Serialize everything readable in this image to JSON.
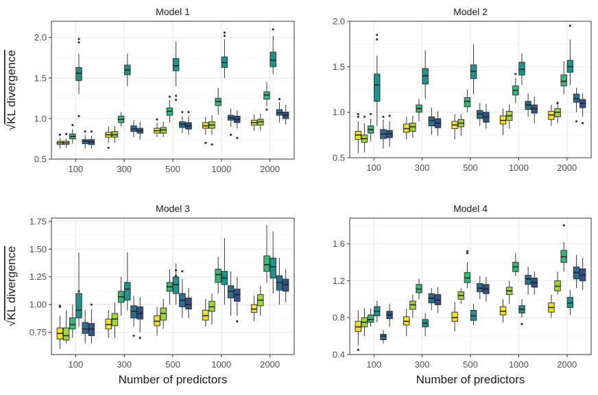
{
  "colors": {
    "m1": "#f4e21e",
    "m2": "#9fd835",
    "m3": "#38b776",
    "m4": "#21918c",
    "m5": "#2d6d8e",
    "m6": "#32508c",
    "grid_major": "#e6e6e6",
    "grid_minor": "#f2f2f2",
    "panel_border": "#333333"
  },
  "chart_data": [
    {
      "type": "box",
      "title": "Model 1",
      "xlabel": "",
      "ylabel": "KL divergence",
      "ylabel_prefix": "√",
      "categories": [
        "100",
        "300",
        "500",
        "1000",
        "2000"
      ],
      "ylim": [
        0.5,
        2.2
      ],
      "yticks": [
        0.5,
        1.0,
        1.5,
        2.0
      ],
      "ytick_labels": [
        "0.5",
        "1.0",
        "1.5",
        "2.0"
      ],
      "boxes": [
        [
          [
            0.63,
            0.68,
            0.7,
            0.72,
            0.76,
            [
              0.8
            ]
          ],
          [
            0.64,
            0.68,
            0.7,
            0.72,
            0.75,
            [
              0.81
            ]
          ],
          [
            0.69,
            0.75,
            0.78,
            0.81,
            0.87,
            [
              0.92
            ]
          ],
          [
            1.3,
            1.47,
            1.56,
            1.63,
            1.8,
            [
              1.03,
              1.94,
              1.98
            ]
          ],
          [
            0.63,
            0.69,
            0.72,
            0.74,
            0.8,
            [
              0.84
            ]
          ],
          [
            0.63,
            0.68,
            0.71,
            0.74,
            0.79,
            [
              0.84
            ]
          ]
        ],
        [
          [
            0.7,
            0.77,
            0.8,
            0.83,
            0.9,
            [
              0.64
            ]
          ],
          [
            0.7,
            0.77,
            0.8,
            0.84,
            0.91,
            []
          ],
          [
            0.9,
            0.95,
            0.99,
            1.03,
            1.08,
            []
          ],
          [
            1.4,
            1.54,
            1.6,
            1.66,
            1.8,
            []
          ],
          [
            0.77,
            0.84,
            0.87,
            0.91,
            0.98,
            []
          ],
          [
            0.74,
            0.82,
            0.85,
            0.88,
            0.96,
            []
          ]
        ],
        [
          [
            0.77,
            0.82,
            0.85,
            0.88,
            0.95,
            [
              0.99
            ]
          ],
          [
            0.77,
            0.82,
            0.86,
            0.89,
            0.96,
            []
          ],
          [
            0.95,
            1.04,
            1.09,
            1.13,
            1.23,
            [
              1.27
            ]
          ],
          [
            1.4,
            1.59,
            1.65,
            1.74,
            1.95,
            [
              1.23,
              1.28
            ]
          ],
          [
            0.82,
            0.89,
            0.93,
            0.96,
            1.03,
            [
              1.08
            ]
          ],
          [
            0.8,
            0.87,
            0.91,
            0.95,
            1.03,
            [
              1.08
            ]
          ]
        ],
        [
          [
            0.8,
            0.88,
            0.91,
            0.95,
            1.02,
            [
              0.7
            ]
          ],
          [
            0.8,
            0.88,
            0.92,
            0.96,
            1.04,
            [
              0.68
            ]
          ],
          [
            1.05,
            1.16,
            1.21,
            1.25,
            1.38,
            []
          ],
          [
            1.5,
            1.63,
            1.69,
            1.76,
            1.98,
            [
              2.02,
              2.06
            ]
          ],
          [
            0.9,
            0.98,
            1.01,
            1.04,
            1.12,
            [
              0.8
            ]
          ],
          [
            0.88,
            0.95,
            0.99,
            1.03,
            1.1,
            [
              0.76
            ]
          ]
        ],
        [
          [
            0.85,
            0.92,
            0.95,
            0.98,
            1.05,
            []
          ],
          [
            0.85,
            0.92,
            0.96,
            0.99,
            1.06,
            []
          ],
          [
            1.15,
            1.24,
            1.29,
            1.33,
            1.45,
            [
              1.11
            ]
          ],
          [
            1.55,
            1.64,
            1.72,
            1.82,
            2.02,
            [
              2.1
            ]
          ],
          [
            0.95,
            1.04,
            1.07,
            1.11,
            1.2,
            [
              1.24
            ]
          ],
          [
            0.93,
            1.0,
            1.04,
            1.08,
            1.17,
            []
          ]
        ]
      ]
    },
    {
      "type": "box",
      "title": "Model 2",
      "xlabel": "",
      "ylabel": "",
      "ylabel_prefix": "",
      "categories": [
        "100",
        "300",
        "500",
        "1000",
        "2000"
      ],
      "ylim": [
        0.5,
        2.0
      ],
      "yticks": [
        0.5,
        1.0,
        1.5,
        2.0
      ],
      "ytick_labels": [
        "0.5",
        "1.0",
        "1.5",
        "2.0"
      ],
      "boxes": [
        [
          [
            0.55,
            0.7,
            0.75,
            0.79,
            0.9,
            [
              0.95,
              0.98
            ]
          ],
          [
            0.56,
            0.67,
            0.71,
            0.75,
            0.88,
            [
              0.95
            ]
          ],
          [
            0.68,
            0.77,
            0.81,
            0.85,
            0.93,
            [
              0.98
            ]
          ],
          [
            0.85,
            1.12,
            1.3,
            1.42,
            1.62,
            [
              1.8,
              1.85
            ]
          ],
          [
            0.6,
            0.71,
            0.76,
            0.81,
            0.92,
            [
              0.95
            ]
          ],
          [
            0.62,
            0.72,
            0.76,
            0.8,
            0.9,
            [
              0.96
            ]
          ]
        ],
        [
          [
            0.7,
            0.78,
            0.82,
            0.87,
            0.95,
            []
          ],
          [
            0.72,
            0.79,
            0.84,
            0.88,
            0.96,
            []
          ],
          [
            0.9,
            1.0,
            1.04,
            1.08,
            1.15,
            []
          ],
          [
            1.15,
            1.31,
            1.4,
            1.48,
            1.68,
            []
          ],
          [
            0.75,
            0.85,
            0.91,
            0.95,
            1.05,
            []
          ],
          [
            0.74,
            0.83,
            0.88,
            0.93,
            1.01,
            []
          ]
        ],
        [
          [
            0.7,
            0.82,
            0.86,
            0.9,
            0.98,
            []
          ],
          [
            0.74,
            0.84,
            0.88,
            0.92,
            0.98,
            []
          ],
          [
            1.0,
            1.06,
            1.12,
            1.16,
            1.25,
            []
          ],
          [
            1.2,
            1.37,
            1.45,
            1.52,
            1.75,
            []
          ],
          [
            0.85,
            0.93,
            0.98,
            1.02,
            1.1,
            []
          ],
          [
            0.82,
            0.89,
            0.95,
            1.0,
            1.09,
            []
          ]
        ],
        [
          [
            0.75,
            0.87,
            0.91,
            0.96,
            1.04,
            []
          ],
          [
            0.82,
            0.91,
            0.96,
            1.01,
            1.09,
            []
          ],
          [
            1.1,
            1.19,
            1.24,
            1.29,
            1.38,
            [
              1.42
            ]
          ],
          [
            1.3,
            1.41,
            1.47,
            1.55,
            1.65,
            []
          ],
          [
            0.95,
            1.03,
            1.08,
            1.12,
            1.21,
            []
          ],
          [
            0.88,
            0.99,
            1.04,
            1.08,
            1.17,
            []
          ]
        ],
        [
          [
            0.85,
            0.92,
            0.97,
            1.01,
            1.08,
            []
          ],
          [
            0.88,
            0.95,
            1.0,
            1.04,
            1.12,
            [
              1.1
            ]
          ],
          [
            1.2,
            1.29,
            1.34,
            1.41,
            1.56,
            []
          ],
          [
            1.3,
            1.44,
            1.5,
            1.57,
            1.8,
            [
              1.95
            ]
          ],
          [
            1.0,
            1.11,
            1.15,
            1.2,
            1.27,
            [
              0.9
            ]
          ],
          [
            0.95,
            1.05,
            1.1,
            1.14,
            1.21,
            [
              0.88
            ]
          ]
        ]
      ]
    },
    {
      "type": "box",
      "title": "Model 3",
      "xlabel": "Number of predictors",
      "ylabel": "KL divergence",
      "ylabel_prefix": "√",
      "categories": [
        "100",
        "300",
        "500",
        "1000",
        "2000"
      ],
      "ylim": [
        0.55,
        1.78
      ],
      "yticks": [
        0.75,
        1.0,
        1.25,
        1.5,
        1.75
      ],
      "ytick_labels": [
        "0.75",
        "1.00",
        "1.25",
        "1.50",
        "1.75"
      ],
      "boxes": [
        [
          [
            0.6,
            0.69,
            0.74,
            0.79,
            0.9,
            [
              0.98,
              0.99
            ]
          ],
          [
            0.65,
            0.68,
            0.72,
            0.79,
            0.95,
            []
          ],
          [
            0.7,
            0.78,
            0.82,
            0.88,
            1.0,
            []
          ],
          [
            0.8,
            0.88,
            0.95,
            1.1,
            1.47,
            [
              1.12
            ]
          ],
          [
            0.65,
            0.74,
            0.78,
            0.84,
            0.95,
            []
          ],
          [
            0.65,
            0.72,
            0.78,
            0.83,
            0.96,
            [
              1.0
            ]
          ]
        ],
        [
          [
            0.7,
            0.78,
            0.82,
            0.87,
            0.95,
            []
          ],
          [
            0.7,
            0.81,
            0.87,
            0.92,
            1.02,
            []
          ],
          [
            0.9,
            1.02,
            1.07,
            1.12,
            1.25,
            []
          ],
          [
            0.95,
            1.04,
            1.14,
            1.2,
            1.47,
            []
          ],
          [
            0.8,
            0.88,
            0.94,
            0.99,
            1.08,
            [
              0.72
            ]
          ],
          [
            0.75,
            0.87,
            0.92,
            0.98,
            1.07,
            [
              0.7
            ]
          ]
        ],
        [
          [
            0.72,
            0.81,
            0.85,
            0.9,
            0.98,
            []
          ],
          [
            0.78,
            0.86,
            0.92,
            0.97,
            1.05,
            []
          ],
          [
            1.0,
            1.12,
            1.16,
            1.2,
            1.32,
            []
          ],
          [
            1.0,
            1.1,
            1.18,
            1.25,
            1.37,
            [
              1.26,
              1.31
            ]
          ],
          [
            0.88,
            0.98,
            1.04,
            1.1,
            1.23,
            [
              1.3
            ]
          ],
          [
            0.88,
            0.96,
            1.0,
            1.06,
            1.15,
            []
          ]
        ],
        [
          [
            0.8,
            0.86,
            0.9,
            0.95,
            1.05,
            []
          ],
          [
            0.82,
            0.94,
            0.98,
            1.03,
            1.1,
            []
          ],
          [
            1.1,
            1.2,
            1.27,
            1.32,
            1.43,
            []
          ],
          [
            1.0,
            1.18,
            1.24,
            1.3,
            1.6,
            []
          ],
          [
            0.9,
            1.06,
            1.12,
            1.17,
            1.3,
            []
          ],
          [
            0.9,
            1.03,
            1.09,
            1.14,
            1.25,
            [
              0.85
            ]
          ]
        ],
        [
          [
            0.85,
            0.93,
            0.96,
            1.0,
            1.08,
            []
          ],
          [
            0.9,
            0.99,
            1.04,
            1.09,
            1.17,
            []
          ],
          [
            1.2,
            1.3,
            1.36,
            1.44,
            1.72,
            []
          ],
          [
            1.1,
            1.24,
            1.34,
            1.42,
            1.66,
            []
          ],
          [
            1.0,
            1.13,
            1.2,
            1.26,
            1.42,
            []
          ],
          [
            1.02,
            1.12,
            1.18,
            1.23,
            1.32,
            []
          ]
        ]
      ]
    },
    {
      "type": "box",
      "title": "Model 4",
      "xlabel": "Number of predictors",
      "ylabel": "",
      "ylabel_prefix": "",
      "categories": [
        "100",
        "300",
        "500",
        "1000",
        "2000"
      ],
      "ylim": [
        0.4,
        1.88
      ],
      "yticks": [
        0.4,
        0.8,
        1.2,
        1.6
      ],
      "ytick_labels": [
        "0.4",
        "0.8",
        "1.2",
        "1.6"
      ],
      "boxes": [
        [
          [
            0.5,
            0.65,
            0.7,
            0.76,
            0.88,
            [
              0.45
            ]
          ],
          [
            0.6,
            0.7,
            0.75,
            0.8,
            0.9,
            []
          ],
          [
            0.7,
            0.75,
            0.78,
            0.83,
            0.9,
            []
          ],
          [
            0.75,
            0.82,
            0.87,
            0.92,
            0.98,
            []
          ],
          [
            0.52,
            0.56,
            0.6,
            0.62,
            0.67,
            []
          ],
          [
            0.7,
            0.79,
            0.83,
            0.87,
            0.95,
            []
          ]
        ],
        [
          [
            0.6,
            0.72,
            0.76,
            0.81,
            0.9,
            []
          ],
          [
            0.8,
            0.89,
            0.94,
            0.98,
            1.05,
            []
          ],
          [
            1.0,
            1.07,
            1.11,
            1.16,
            1.22,
            []
          ],
          [
            0.6,
            0.7,
            0.74,
            0.78,
            0.85,
            []
          ],
          [
            0.88,
            0.96,
            1.01,
            1.06,
            1.12,
            []
          ],
          [
            0.85,
            0.94,
            0.99,
            1.05,
            1.13,
            []
          ]
        ],
        [
          [
            0.65,
            0.76,
            0.8,
            0.86,
            0.97,
            []
          ],
          [
            0.95,
            1.0,
            1.04,
            1.08,
            1.12,
            []
          ],
          [
            1.12,
            1.18,
            1.23,
            1.29,
            1.4,
            [
              1.5,
              1.52
            ]
          ],
          [
            0.72,
            0.77,
            0.82,
            0.88,
            0.95,
            []
          ],
          [
            1.0,
            1.08,
            1.12,
            1.17,
            1.25,
            []
          ],
          [
            0.97,
            1.06,
            1.11,
            1.16,
            1.24,
            []
          ]
        ],
        [
          [
            0.75,
            0.83,
            0.87,
            0.92,
            1.0,
            []
          ],
          [
            0.95,
            1.05,
            1.09,
            1.13,
            1.2,
            []
          ],
          [
            1.25,
            1.3,
            1.35,
            1.4,
            1.5,
            []
          ],
          [
            0.8,
            0.85,
            0.89,
            0.93,
            1.0,
            [
              0.73
            ]
          ],
          [
            1.05,
            1.16,
            1.22,
            1.26,
            1.35,
            []
          ],
          [
            1.05,
            1.13,
            1.18,
            1.23,
            1.3,
            []
          ]
        ],
        [
          [
            0.8,
            0.86,
            0.91,
            0.96,
            1.05,
            []
          ],
          [
            1.05,
            1.09,
            1.14,
            1.2,
            1.3,
            []
          ],
          [
            1.3,
            1.4,
            1.46,
            1.53,
            1.62,
            [
              1.8
            ]
          ],
          [
            0.83,
            0.91,
            0.96,
            1.02,
            1.1,
            []
          ],
          [
            1.12,
            1.22,
            1.29,
            1.35,
            1.48,
            []
          ],
          [
            1.1,
            1.2,
            1.26,
            1.33,
            1.45,
            []
          ]
        ]
      ]
    }
  ]
}
